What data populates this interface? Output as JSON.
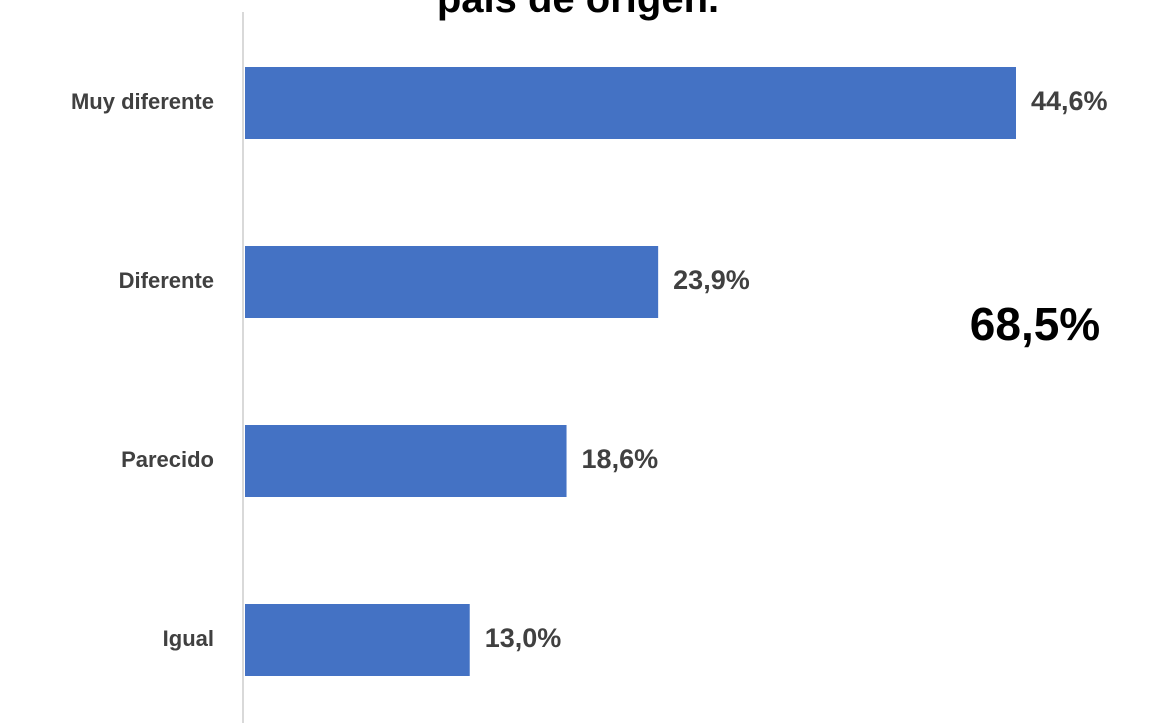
{
  "chart_data": {
    "type": "bar",
    "orientation": "horizontal",
    "title": "país de origen.",
    "categories": [
      "Muy diferente",
      "Diferente",
      "Parecido",
      "Igual"
    ],
    "values": [
      44.6,
      23.9,
      18.6,
      13.0
    ],
    "value_labels": [
      "44,6%",
      "23,9%",
      "18,6%",
      "13,0%"
    ],
    "value_unit": "%",
    "xlim": [
      0,
      46
    ],
    "bar_color": "#4472C4",
    "axis_color": "#D9D9D9",
    "grid": false,
    "legend": "none",
    "annotations": [
      {
        "text": "68,5%"
      }
    ]
  }
}
